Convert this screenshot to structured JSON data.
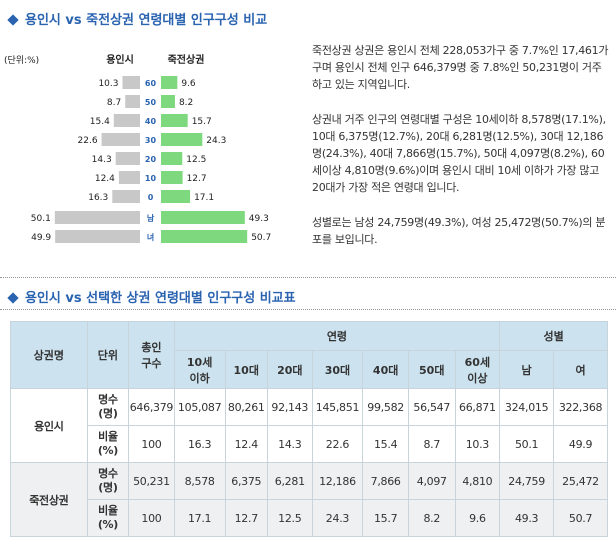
{
  "section1": {
    "title": "용인시 vs 죽전상권 연령대별 인구구성 비교"
  },
  "section2": {
    "title": "용인시 vs 선택한 상권 연령대별 인구구성 비교표"
  },
  "chart_data": {
    "type": "bar",
    "unit_label": "(단위:%)",
    "left_label": "용인시",
    "right_label": "죽전상권",
    "categories": [
      "60",
      "50",
      "40",
      "30",
      "20",
      "10",
      "0",
      "남",
      "녀"
    ],
    "series": [
      {
        "name": "용인시",
        "values": [
          10.3,
          8.7,
          15.4,
          22.6,
          14.3,
          12.4,
          16.3,
          50.1,
          49.9
        ]
      },
      {
        "name": "죽전상권",
        "values": [
          9.6,
          8.2,
          15.7,
          24.3,
          12.5,
          12.7,
          17.1,
          49.3,
          50.7
        ]
      }
    ],
    "colors": {
      "left": "#c8c8c8",
      "right": "#7ed87e",
      "category": "#2a63b0"
    }
  },
  "description": [
    "죽전상권 상권은 용인시 전체 228,053가구 중 7.7%인 17,461가구며 용인시 전체 인구 646,379명 중 7.8%인 50,231명이 거주하고 있는 지역입니다.",
    "상권내 거주 인구의 연령대별 구성은 10세이하 8,578명(17.1%), 10대 6,375명(12.7%), 20대 6,281명(12.5%), 30대 12,186명(24.3%), 40대 7,866명(15.7%), 50대 4,097명(8.2%), 60세이상 4,810명(9.6%)이며 용인시 대비 10세 이하가 가장 많고 20대가 가장 적은 연령대 입니다.",
    "성별로는 남성 24,759명(49.3%), 여성 25,472명(50.7%)의 분포를 보입니다."
  ],
  "table": {
    "headers": {
      "area": "상권명",
      "unit": "단위",
      "total_line1": "총인",
      "total_line2": "구수",
      "age_group": "연령",
      "gender_group": "성별",
      "age_cols": [
        [
          "10세",
          "이하"
        ],
        [
          "10대",
          ""
        ],
        [
          "20대",
          ""
        ],
        [
          "30대",
          ""
        ],
        [
          "40대",
          ""
        ],
        [
          "50대",
          ""
        ],
        [
          "60세",
          "이상"
        ]
      ],
      "gender_cols": [
        "남",
        "여"
      ]
    },
    "rows": [
      {
        "area": "용인시",
        "count_unit": [
          "명수",
          "(명)"
        ],
        "count": [
          "646,379",
          "105,087",
          "80,261",
          "92,143",
          "145,851",
          "99,582",
          "56,547",
          "66,871",
          "324,015",
          "322,368"
        ],
        "ratio_unit": [
          "비율",
          "(%)"
        ],
        "ratio": [
          "100",
          "16.3",
          "12.4",
          "14.3",
          "22.6",
          "15.4",
          "8.7",
          "10.3",
          "50.1",
          "49.9"
        ]
      },
      {
        "area": "죽전상권",
        "count_unit": [
          "명수",
          "(명)"
        ],
        "count": [
          "50,231",
          "8,578",
          "6,375",
          "6,281",
          "12,186",
          "7,866",
          "4,097",
          "4,810",
          "24,759",
          "25,472"
        ],
        "ratio_unit": [
          "비율",
          "(%)"
        ],
        "ratio": [
          "100",
          "17.1",
          "12.7",
          "12.5",
          "24.3",
          "15.7",
          "8.2",
          "9.6",
          "49.3",
          "50.7"
        ]
      }
    ]
  }
}
